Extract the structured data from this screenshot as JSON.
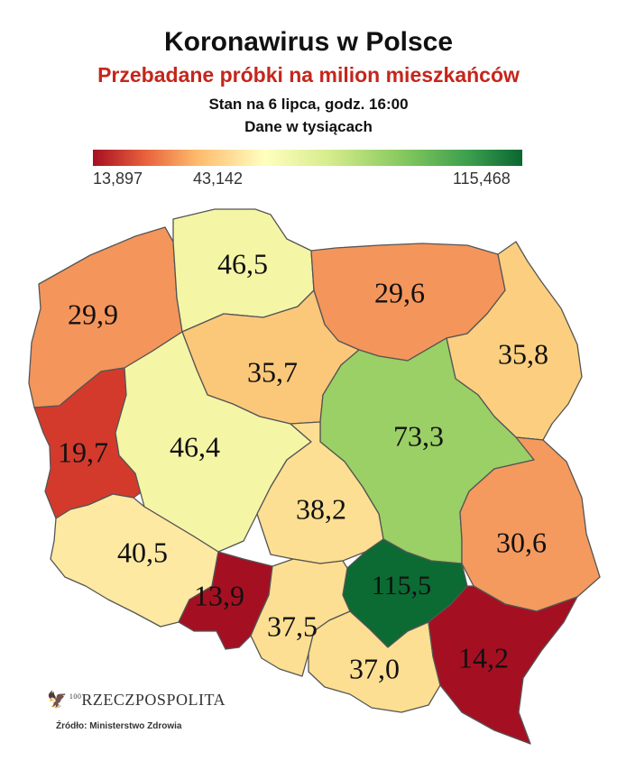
{
  "title": "Koronawirus w Polsce",
  "subtitle": "Przebadane próbki na milion mieszkańców",
  "date_line": "Stan na 6 lipca, godz. 16:00",
  "unit_line": "Dane w tysiącach",
  "legend": {
    "min": "13,897",
    "mid": "43,142",
    "max": "115,468"
  },
  "regions": [
    {
      "id": "pomorskie",
      "value": "46,5",
      "color": "#f5f5a6"
    },
    {
      "id": "zachodniopomorskie",
      "value": "29,9",
      "color": "#f4955b"
    },
    {
      "id": "warminsko-mazurskie",
      "value": "29,6",
      "color": "#f4955b"
    },
    {
      "id": "podlaskie",
      "value": "35,8",
      "color": "#fbcf7f"
    },
    {
      "id": "kujawsko-pomorskie",
      "value": "35,7",
      "color": "#fbc87a"
    },
    {
      "id": "lubuskie",
      "value": "19,7",
      "color": "#d33a2c"
    },
    {
      "id": "wielkopolskie",
      "value": "46,4",
      "color": "#f5f5a6"
    },
    {
      "id": "mazowieckie",
      "value": "73,3",
      "color": "#9ad065"
    },
    {
      "id": "lodzkie",
      "value": "38,2",
      "color": "#fcdf92"
    },
    {
      "id": "dolnoslaskie",
      "value": "40,5",
      "color": "#fde9a2"
    },
    {
      "id": "lubelskie",
      "value": "30,6",
      "color": "#f49a5f"
    },
    {
      "id": "opolskie",
      "value": "13,9",
      "color": "#a50f22"
    },
    {
      "id": "swietokrzyskie",
      "value": "115,5",
      "color": "#0b6b33"
    },
    {
      "id": "slaskie",
      "value": "37,5",
      "color": "#fcdf92"
    },
    {
      "id": "malopolskie",
      "value": "37,0",
      "color": "#fcdf92"
    },
    {
      "id": "podkarpackie",
      "value": "14,2",
      "color": "#a50f22"
    }
  ],
  "logo_text": "RZECZPOSPOLITA",
  "logo_prefix": "100",
  "source": "Źródło: Ministerstwo Zdrowia"
}
